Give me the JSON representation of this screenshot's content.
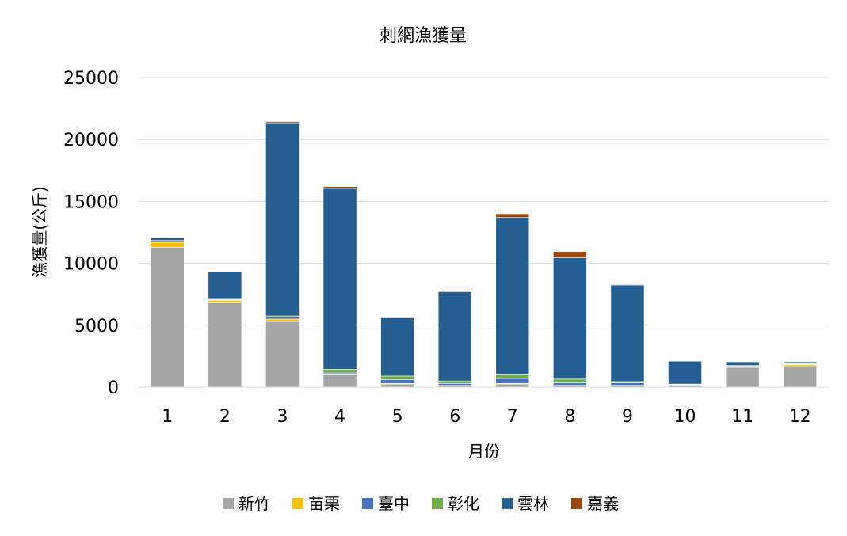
{
  "chart_data": {
    "type": "bar",
    "stacked": true,
    "title": "刺網漁獲量",
    "xlabel": "月份",
    "ylabel": "漁獲量(公斤)",
    "ylim": [
      0,
      25000
    ],
    "yticks": [
      0,
      5000,
      10000,
      15000,
      20000,
      25000
    ],
    "grid": true,
    "legend_position": "bottom",
    "categories": [
      "1",
      "2",
      "3",
      "4",
      "5",
      "6",
      "7",
      "8",
      "9",
      "10",
      "11",
      "12"
    ],
    "series": [
      {
        "name": "新竹",
        "color": "#a5a5a5",
        "values": [
          11300,
          6800,
          5300,
          1000,
          250,
          120,
          250,
          100,
          100,
          100,
          1600,
          1650
        ]
      },
      {
        "name": "苗栗",
        "color": "#ffc000",
        "values": [
          400,
          200,
          200,
          50,
          50,
          30,
          50,
          50,
          50,
          50,
          50,
          150
        ]
      },
      {
        "name": "臺中",
        "color": "#4472c4",
        "values": [
          100,
          50,
          150,
          100,
          300,
          150,
          400,
          200,
          200,
          50,
          50,
          50
        ]
      },
      {
        "name": "彰化",
        "color": "#70ad47",
        "values": [
          50,
          50,
          100,
          300,
          300,
          200,
          300,
          300,
          100,
          50,
          50,
          50
        ]
      },
      {
        "name": "雲林",
        "color": "#255e91",
        "values": [
          200,
          2200,
          15600,
          14600,
          4700,
          7200,
          12700,
          9800,
          7800,
          1850,
          300,
          150
        ]
      },
      {
        "name": "嘉義",
        "color": "#9e480e",
        "values": [
          50,
          50,
          100,
          150,
          50,
          100,
          300,
          500,
          50,
          30,
          30,
          30
        ]
      }
    ]
  }
}
